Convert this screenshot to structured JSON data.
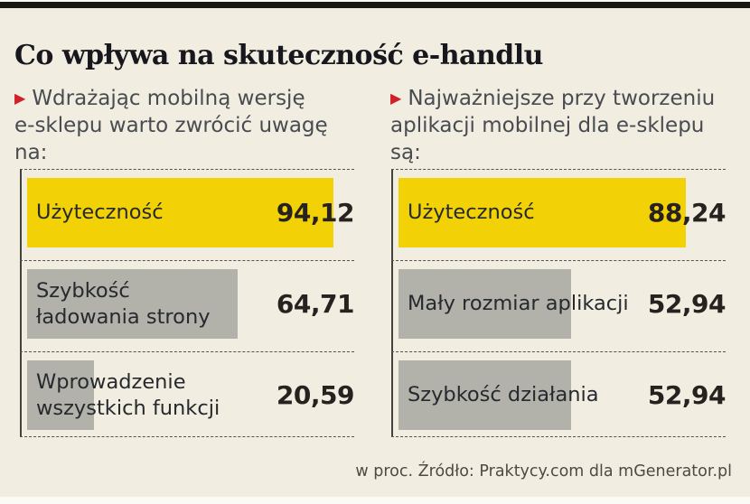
{
  "page": {
    "title": "Co wpływa na skuteczność e-handlu",
    "footer_note": "w proc. Źródło: Praktycy.com dla mGenerator.pl"
  },
  "icons": {
    "bullet_triangle": "▶"
  },
  "colors": {
    "background": "#f1ede1",
    "top_bar": "#181815",
    "bar_yellow": "#f2d206",
    "bar_gray": "#b2b2ab",
    "bullet_red": "#d0202a",
    "dashed_line": "#55534d",
    "axis_line": "#44423c"
  },
  "columns": [
    {
      "intro": "Wdrażając mobilną wersję\ne-sklepu warto zwrócić uwagę\nna:",
      "bars": [
        {
          "label": "Użyteczność",
          "value": 94.12,
          "value_label": "94,12",
          "color": "yellow"
        },
        {
          "label": "Szybkość\nładowania strony",
          "value": 64.71,
          "value_label": "64,71",
          "color": "gray"
        },
        {
          "label": "Wprowadzenie\nwszystkich funkcji",
          "value": 20.59,
          "value_label": "20,59",
          "color": "gray"
        }
      ]
    },
    {
      "intro": "Najważniejsze przy tworzeniu\naplikacji mobilnej dla e-sklepu\nsą:",
      "bars": [
        {
          "label": "Użyteczność",
          "value": 88.24,
          "value_label": "88,24",
          "color": "yellow"
        },
        {
          "label": "Mały rozmiar aplikacji",
          "value": 52.94,
          "value_label": "52,94",
          "color": "gray"
        },
        {
          "label": "Szybkość działania",
          "value": 52.94,
          "value_label": "52,94",
          "color": "gray"
        }
      ]
    }
  ],
  "chart_data": [
    {
      "type": "bar",
      "orientation": "horizontal",
      "title": "Wdrażając mobilną wersję e-sklepu warto zwrócić uwagę na:",
      "categories": [
        "Użyteczność",
        "Szybkość ładowania strony",
        "Wprowadzenie wszystkich funkcji"
      ],
      "values": [
        94.12,
        64.71,
        20.59
      ],
      "unit": "proc.",
      "xlim": [
        0,
        100
      ],
      "highlight_color_first_bar": "#f2d206",
      "other_bar_color": "#b2b2ab",
      "source": "Praktycy.com dla mGenerator.pl"
    },
    {
      "type": "bar",
      "orientation": "horizontal",
      "title": "Najważniejsze przy tworzeniu aplikacji mobilnej dla e-sklepu są:",
      "categories": [
        "Użyteczność",
        "Mały rozmiar aplikacji",
        "Szybkość działania"
      ],
      "values": [
        88.24,
        52.94,
        52.94
      ],
      "unit": "proc.",
      "xlim": [
        0,
        100
      ],
      "highlight_color_first_bar": "#f2d206",
      "other_bar_color": "#b2b2ab",
      "source": "Praktycy.com dla mGenerator.pl"
    }
  ]
}
